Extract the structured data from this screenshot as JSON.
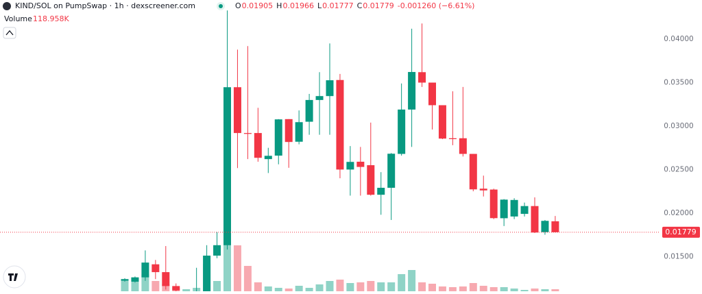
{
  "chart_data": {
    "type": "candlestick",
    "title": "KIND/SOL on PumpSwap · 1h · dexscreener.com",
    "ohlc": [
      {
        "label": "O",
        "value": 0.01905
      },
      {
        "label": "H",
        "value": 0.01966
      },
      {
        "label": "L",
        "value": 0.01777
      },
      {
        "label": "C",
        "value": 0.01779
      }
    ],
    "change": "-0.001260 (−6.61%)",
    "volume_title": "Volume",
    "last_volume": {
      "value": 118.958,
      "label": "118.958K"
    },
    "open": [
      0.0122,
      0.0121,
      0.0126,
      0.0141,
      0.0132,
      0.0116,
      null,
      0.0105,
      0.0108,
      0.0151,
      0.0163,
      0.03447,
      0.0292,
      0.0292,
      0.0262,
      0.0266,
      0.0308,
      0.0282,
      0.0305,
      0.033,
      0.03345,
      0.0353,
      0.025,
      0.0259,
      0.0255,
      0.0221,
      0.0229,
      0.0268,
      0.0319,
      0.0362,
      0.035,
      0.0324,
      0.0286,
      0.0286,
      0.0268,
      0.0228,
      0.0227,
      0.0194,
      0.0196,
      0.0199,
      0.0208,
      0.0178,
      0.01905
    ],
    "high": [
      0.0125,
      0.0127,
      0.0157,
      0.0146,
      0.0162,
      0.0119,
      null,
      0.0137,
      0.0163,
      0.0178,
      0.0433,
      0.0388,
      0.0392,
      0.0321,
      0.0275,
      0.0308,
      0.0308,
      0.0318,
      0.0337,
      0.0362,
      0.0395,
      0.036,
      0.0277,
      0.0276,
      0.0304,
      0.0247,
      0.0269,
      0.0349,
      0.0412,
      0.0418,
      0.035,
      0.0324,
      0.034,
      0.0345,
      0.0268,
      0.0243,
      0.0228,
      0.0216,
      0.0217,
      0.0212,
      0.0218,
      0.0192,
      0.01966
    ],
    "low": [
      0.0121,
      0.012,
      0.0122,
      0.0124,
      0.0112,
      0.0109,
      null,
      0.0103,
      0.0104,
      0.0148,
      0.0158,
      0.02517,
      0.0262,
      0.0259,
      0.0246,
      0.0256,
      0.0252,
      0.0279,
      0.029,
      0.029,
      0.029,
      0.024,
      0.022,
      0.022,
      0.022,
      0.0198,
      0.0192,
      0.0266,
      0.0276,
      0.0345,
      0.0296,
      0.0285,
      0.0278,
      0.0265,
      0.0225,
      0.0219,
      0.0193,
      0.0185,
      0.0193,
      0.0196,
      0.0177,
      0.0175,
      0.01777
    ],
    "close": [
      0.0124,
      0.0126,
      0.0143,
      0.0132,
      0.0116,
      0.0111,
      null,
      0.0108,
      0.0151,
      0.0163,
      0.03447,
      0.0292,
      0.0291,
      0.02635,
      0.02658,
      0.03077,
      0.02817,
      0.03045,
      0.033,
      0.03345,
      0.03527,
      0.025,
      0.02588,
      0.0253,
      0.0221,
      0.0229,
      0.02682,
      0.0319,
      0.03622,
      0.035,
      0.0324,
      0.02856,
      0.0285,
      0.0268,
      0.02272,
      0.0226,
      0.01941,
      0.02154,
      0.0215,
      0.0208,
      0.01776,
      0.0191,
      0.01779
    ],
    "volume": [
      600,
      800,
      1000,
      600,
      400,
      200,
      120,
      200,
      1600,
      600,
      4200,
      2680,
      1480,
      520,
      280,
      200,
      160,
      320,
      200,
      400,
      600,
      680,
      480,
      520,
      600,
      520,
      520,
      1000,
      1240,
      520,
      440,
      280,
      240,
      280,
      480,
      320,
      240,
      240,
      160,
      80,
      160,
      120,
      118.958
    ],
    "up_color": "#089981",
    "down_color": "#f23645",
    "up_volume_color": "#8fd3c6",
    "down_volume_color": "#f7a9b0",
    "ylim": [
      0.011,
      0.0445
    ],
    "volume_lim": [
      0,
      17000
    ],
    "yticks": [
      {
        "value": 0.015,
        "label": "0.01500"
      },
      {
        "value": 0.02,
        "label": "0.02000"
      },
      {
        "value": 0.025,
        "label": "0.02500"
      },
      {
        "value": 0.03,
        "label": "0.03000"
      },
      {
        "value": 0.035,
        "label": "0.03500"
      },
      {
        "value": 0.04,
        "label": "0.04000"
      }
    ],
    "grid": false
  }
}
